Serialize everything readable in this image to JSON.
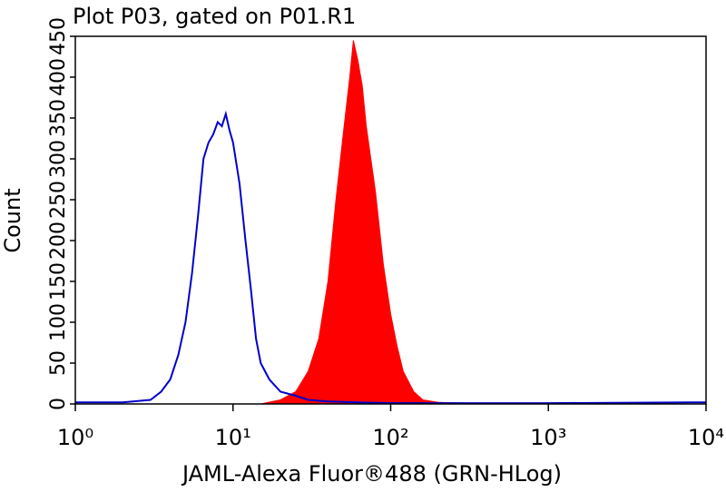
{
  "chart_data": {
    "type": "histogram-overlay",
    "title": "Plot P03, gated on P01.R1",
    "x_label": "JAML-Alexa Fluor®488 (GRN-HLog)",
    "y_label": "Count",
    "xscale": "log",
    "xlim": [
      1,
      10000
    ],
    "xticks": [
      {
        "value": 1,
        "label": "10⁰"
      },
      {
        "value": 10,
        "label": "10¹"
      },
      {
        "value": 100,
        "label": "10²"
      },
      {
        "value": 1000,
        "label": "10³"
      },
      {
        "value": 10000,
        "label": "10⁴"
      }
    ],
    "ylim": [
      0,
      450
    ],
    "yticks": [
      0,
      50,
      100,
      150,
      200,
      250,
      300,
      350,
      400,
      450
    ],
    "series": [
      {
        "color": "#ff0000",
        "fill": true,
        "x": [
          15,
          20,
          25,
          30,
          35,
          40,
          45,
          50,
          55,
          58,
          62,
          66,
          70,
          80,
          90,
          100,
          110,
          120,
          140,
          160,
          200,
          300,
          10000
        ],
        "values": [
          0,
          5,
          15,
          40,
          80,
          150,
          250,
          330,
          400,
          445,
          420,
          390,
          340,
          260,
          170,
          110,
          70,
          40,
          15,
          5,
          2,
          1,
          0
        ]
      },
      {
        "color": "#0000cc",
        "fill": false,
        "x": [
          1,
          2,
          3,
          3.5,
          4,
          4.5,
          5,
          5.5,
          6,
          6.5,
          7,
          7.5,
          8,
          8.5,
          9,
          9.5,
          10,
          11,
          12,
          13,
          14,
          15,
          17,
          20,
          25,
          30,
          40,
          60,
          100,
          1000,
          10000
        ],
        "values": [
          2,
          2,
          5,
          15,
          30,
          60,
          100,
          160,
          230,
          300,
          320,
          330,
          345,
          340,
          355,
          335,
          320,
          270,
          200,
          140,
          80,
          50,
          30,
          15,
          10,
          5,
          3,
          2,
          1,
          1,
          2
        ]
      }
    ]
  }
}
